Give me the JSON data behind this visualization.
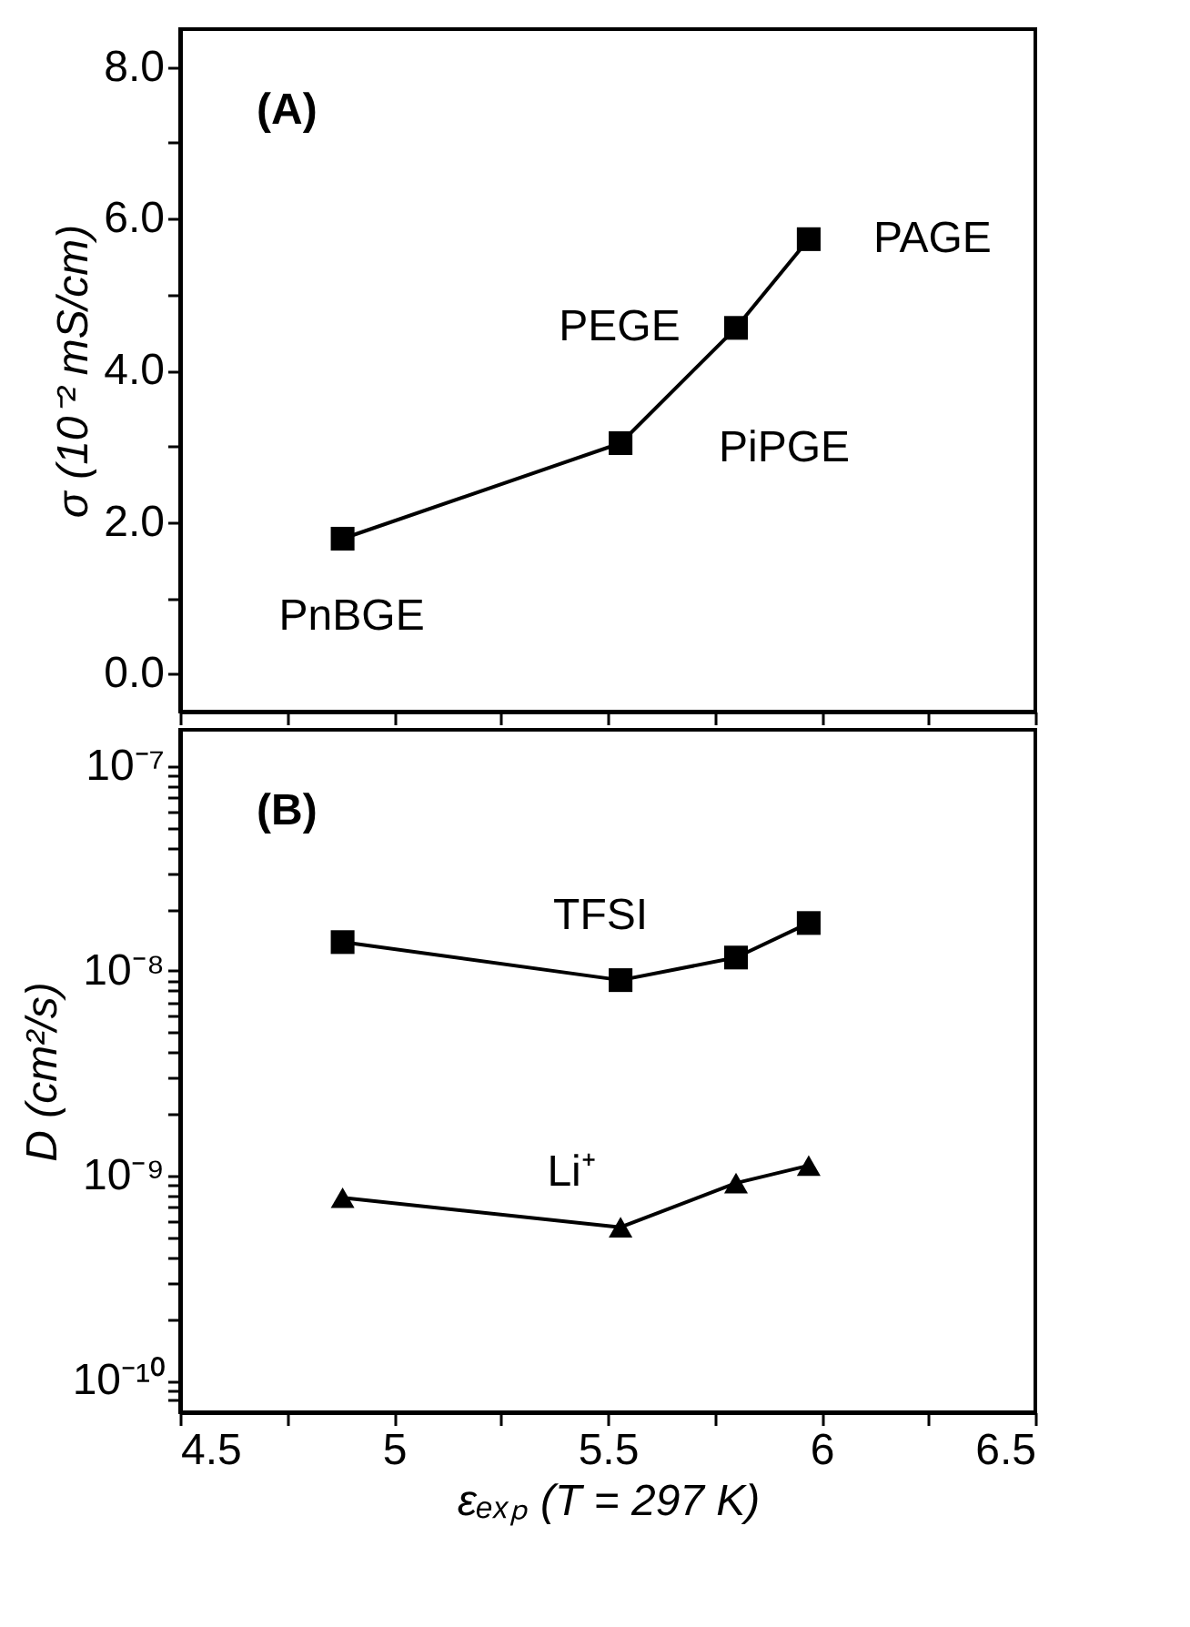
{
  "chart_data": [
    {
      "type": "line",
      "ylabel": "σ (10⁻² mS/cm)",
      "marker": "square",
      "grid": false,
      "tick_labels": "y",
      "x": [
        4.88,
        5.53,
        5.8,
        5.97
      ],
      "series": [
        {
          "color": "#000000",
          "values": [
            1.78,
            3.04,
            4.56,
            5.73
          ]
        }
      ],
      "xlim": [
        4.5,
        6.5
      ],
      "xticks": [
        {
          "value": 4.5,
          "label": null
        },
        {
          "value": 4.75,
          "label": null
        },
        {
          "value": 5,
          "label": null
        },
        {
          "value": 5.25,
          "label": null
        },
        {
          "value": 5.5,
          "label": null
        },
        {
          "value": 5.75,
          "label": null
        },
        {
          "value": 6,
          "label": null
        },
        {
          "value": 6.25,
          "label": null
        },
        {
          "value": 6.5,
          "label": null
        }
      ],
      "ylim": [
        -0.5,
        8.5
      ],
      "yticks": [
        {
          "value": 0,
          "label": "0.0"
        },
        {
          "value": 1,
          "label": null
        },
        {
          "value": 2,
          "label": "2.0"
        },
        {
          "value": 3,
          "label": null
        },
        {
          "value": 4,
          "label": "4.0"
        },
        {
          "value": 5,
          "label": null
        },
        {
          "value": 6,
          "label": "6.0"
        },
        {
          "value": 7,
          "label": null
        },
        {
          "value": 8,
          "label": "8.0"
        }
      ],
      "annotations": [
        "(A)",
        {
          "text": "PnBGE",
          "x": 4.88,
          "y": 1.78
        },
        {
          "text": "PiPGE",
          "x": 5.53,
          "y": 3.04
        },
        {
          "text": "PEGE",
          "x": 5.8,
          "y": 4.56
        },
        {
          "text": "PAGE",
          "x": 5.97,
          "y": 5.73
        }
      ]
    },
    {
      "type": "line",
      "xlabel": "εₑₓₚ (T = 297 K)",
      "ylabel": "D (cm²/s)",
      "log": "y",
      "grid": false,
      "x": [
        4.88,
        5.53,
        5.8,
        5.97
      ],
      "series": [
        {
          "name": "TFSI",
          "color": "#000000",
          "marker": "square",
          "values": [
            1.38e-08,
            9e-09,
            1.16e-08,
            1.71e-08
          ]
        },
        {
          "name": "Li⁺",
          "color": "#000000",
          "marker": "triangle",
          "values": [
            7.8e-10,
            5.6e-10,
            9.2e-10,
            1.12e-09
          ]
        }
      ],
      "xlim": [
        4.5,
        6.5
      ],
      "xticks": [
        4.5,
        {
          "value": 4.75,
          "label": null
        },
        5,
        {
          "value": 5.25,
          "label": null
        },
        5.5,
        {
          "value": 5.75,
          "label": null
        },
        6,
        {
          "value": 6.25,
          "label": null
        },
        6.5
      ],
      "ylim": [
        7e-11,
        1.5e-07
      ],
      "yticks": [
        {
          "value": 8e-11,
          "label": null
        },
        {
          "value": 9e-11,
          "label": null
        },
        {
          "value": 1e-10,
          "label": "10⁻¹⁰"
        },
        {
          "value": 2e-10,
          "label": null
        },
        {
          "value": 3e-10,
          "label": null
        },
        {
          "value": 4e-10,
          "label": null
        },
        {
          "value": 5e-10,
          "label": null
        },
        {
          "value": 6e-10,
          "label": null
        },
        {
          "value": 7e-10,
          "label": null
        },
        {
          "value": 8e-10,
          "label": null
        },
        {
          "value": 9e-10,
          "label": null
        },
        {
          "value": 1e-09,
          "label": "10⁻⁹"
        },
        {
          "value": 2e-09,
          "label": null
        },
        {
          "value": 3e-09,
          "label": null
        },
        {
          "value": 4e-09,
          "label": null
        },
        {
          "value": 5e-09,
          "label": null
        },
        {
          "value": 6e-09,
          "label": null
        },
        {
          "value": 7e-09,
          "label": null
        },
        {
          "value": 8e-09,
          "label": null
        },
        {
          "value": 9e-09,
          "label": null
        },
        {
          "value": 1e-08,
          "label": "10⁻⁸"
        },
        {
          "value": 2e-08,
          "label": null
        },
        {
          "value": 3e-08,
          "label": null
        },
        {
          "value": 4e-08,
          "label": null
        },
        {
          "value": 5e-08,
          "label": null
        },
        {
          "value": 6e-08,
          "label": null
        },
        {
          "value": 7e-08,
          "label": null
        },
        {
          "value": 8e-08,
          "label": null
        },
        {
          "value": 9e-08,
          "label": null
        },
        {
          "value": 1e-07,
          "label": "10⁻⁷"
        }
      ],
      "annotations": [
        "(B)"
      ]
    }
  ]
}
